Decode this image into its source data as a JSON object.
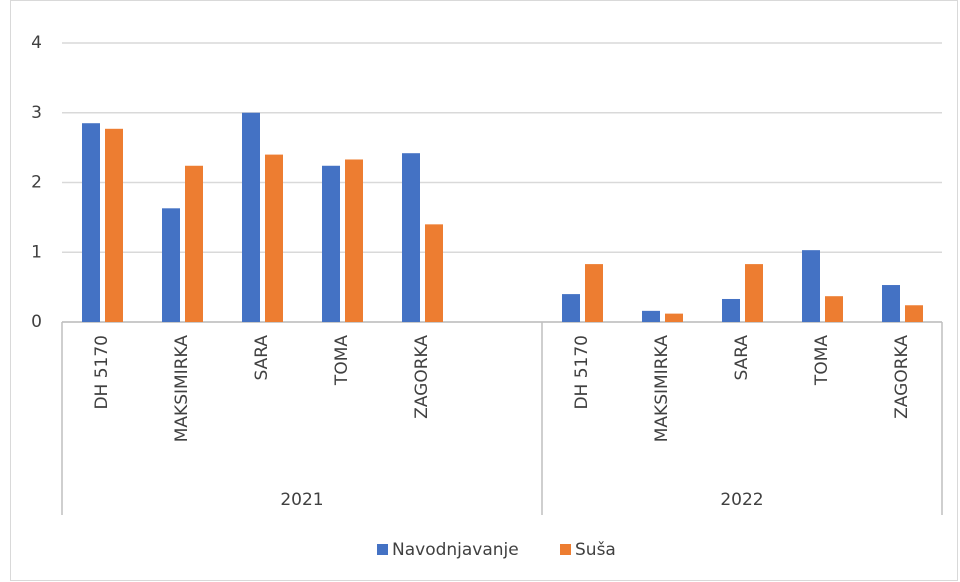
{
  "chart_data": {
    "type": "bar",
    "categories": [
      "DH 5170",
      "MAKSIMIRKA",
      "SARA",
      "TOMA",
      "ZAGORKA",
      null,
      "DH 5170",
      "MAKSIMIRKA",
      "SARA",
      "TOMA",
      "ZAGORKA"
    ],
    "category_groups": [
      "2021",
      "2021",
      "2021",
      "2021",
      "2021",
      "2021",
      "2022",
      "2022",
      "2022",
      "2022",
      "2022"
    ],
    "series": [
      {
        "name": "Navodnjavanje",
        "color": "#4472c4",
        "values": [
          2.85,
          1.63,
          3.0,
          2.24,
          2.42,
          null,
          0.4,
          0.16,
          0.33,
          1.03,
          0.53
        ]
      },
      {
        "name": "Suša",
        "color": "#ed7d31",
        "values": [
          2.77,
          2.24,
          2.4,
          2.33,
          1.4,
          null,
          0.83,
          0.12,
          0.83,
          0.37,
          0.24
        ]
      }
    ],
    "ylim": [
      0,
      4
    ],
    "yticks": [
      0,
      1,
      2,
      3,
      4
    ],
    "grid": true,
    "legend": "bottom"
  }
}
